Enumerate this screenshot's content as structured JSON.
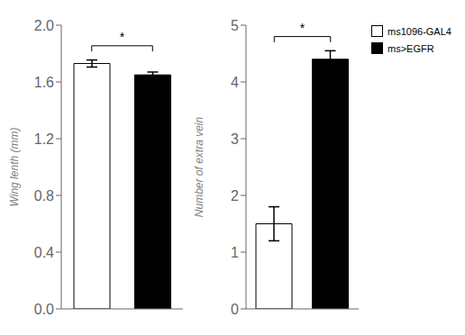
{
  "chart_data": [
    {
      "type": "bar",
      "categories": [
        "ms1096-GAL4",
        "ms>EGFR"
      ],
      "values": [
        1.73,
        1.65
      ],
      "errors": [
        0.025,
        0.02
      ],
      "colors": [
        "white",
        "black"
      ],
      "ylabel": "Wing lenth (mm)",
      "ylim": [
        0,
        2
      ],
      "yticks": [
        {
          "value": 0,
          "label": "0.0"
        },
        0.4,
        0.8,
        1.2,
        1.6,
        {
          "value": 2,
          "label": "2.0"
        }
      ],
      "annotation": "*",
      "tick_labels": "y"
    },
    {
      "type": "bar",
      "categories": [
        "ms1096-GAL4",
        "ms>EGFR"
      ],
      "values": [
        1.5,
        4.4
      ],
      "errors": [
        0.3,
        0.15
      ],
      "colors": [
        "white",
        "black"
      ],
      "ylabel": "Number of extra vein",
      "ylim": [
        0,
        5
      ],
      "yticks": [
        0,
        1,
        2,
        3,
        4,
        5
      ],
      "annotation": "*",
      "tick_labels": "y",
      "legend": "right"
    }
  ]
}
